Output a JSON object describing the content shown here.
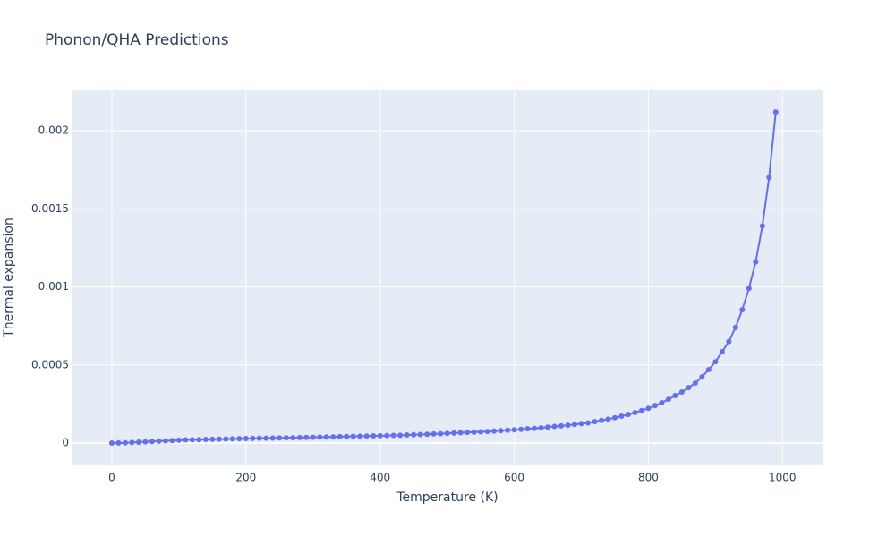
{
  "chart_data": {
    "type": "line",
    "title": "Phonon/QHA Predictions",
    "x_label": "Temperature (K)",
    "y_label": "Thermal expansion",
    "x": [
      0,
      10,
      20,
      30,
      40,
      50,
      60,
      70,
      80,
      90,
      100,
      110,
      120,
      130,
      140,
      150,
      160,
      170,
      180,
      190,
      200,
      210,
      220,
      230,
      240,
      250,
      260,
      270,
      280,
      290,
      300,
      310,
      320,
      330,
      340,
      350,
      360,
      370,
      380,
      390,
      400,
      410,
      420,
      430,
      440,
      450,
      460,
      470,
      480,
      490,
      500,
      510,
      520,
      530,
      540,
      550,
      560,
      570,
      580,
      590,
      600,
      610,
      620,
      630,
      640,
      650,
      660,
      670,
      680,
      690,
      700,
      710,
      720,
      730,
      740,
      750,
      760,
      770,
      780,
      790,
      800,
      810,
      820,
      830,
      840,
      850,
      860,
      870,
      880,
      890,
      900,
      910,
      920,
      930,
      940,
      950,
      960,
      970,
      980,
      990
    ],
    "series": [
      {
        "name": "Thermal expansion",
        "color": "#636efa",
        "values": [
          0,
          1e-06,
          2e-06,
          4e-06,
          6e-06,
          8e-06,
          1e-05,
          1.2e-05,
          1.4e-05,
          1.6e-05,
          1.8e-05,
          2e-05,
          2.1e-05,
          2.2e-05,
          2.3e-05,
          2.4e-05,
          2.5e-05,
          2.6e-05,
          2.7e-05,
          2.8e-05,
          2.9e-05,
          3e-05,
          3.1e-05,
          3.1e-05,
          3.2e-05,
          3.3e-05,
          3.4e-05,
          3.4e-05,
          3.5e-05,
          3.6e-05,
          3.7e-05,
          3.8e-05,
          3.9e-05,
          4e-05,
          4.1e-05,
          4.2e-05,
          4.3e-05,
          4.4e-05,
          4.5e-05,
          4.6e-05,
          4.7e-05,
          4.8e-05,
          4.9e-05,
          5e-05,
          5.2e-05,
          5.3e-05,
          5.5e-05,
          5.6e-05,
          5.8e-05,
          6e-05,
          6.2e-05,
          6.4e-05,
          6.6e-05,
          6.8e-05,
          7e-05,
          7.2e-05,
          7.4e-05,
          7.7e-05,
          7.9e-05,
          8.2e-05,
          8.5e-05,
          8.8e-05,
          9.1e-05,
          9.4e-05,
          9.8e-05,
          0.000102,
          0.000106,
          0.00011,
          0.000114,
          0.000119,
          0.000124,
          0.000129,
          0.000137,
          0.000145,
          0.000153,
          0.000162,
          0.000172,
          0.000183,
          0.000195,
          0.000208,
          0.000222,
          0.00024,
          0.000258,
          0.00028,
          0.000304,
          0.000327,
          0.000355,
          0.000384,
          0.000424,
          0.00047,
          0.00052,
          0.000585,
          0.00065,
          0.00074,
          0.000854,
          0.00099,
          0.00116,
          0.00139,
          0.0017,
          0.00212
        ]
      }
    ],
    "xlim": [
      -60,
      1061
    ],
    "ylim": [
      -0.000143,
      0.002264
    ],
    "xticks": [
      0,
      200,
      400,
      600,
      800,
      1000
    ],
    "yticks": [
      0,
      0.0005,
      0.001,
      0.0015,
      0.002
    ],
    "grid": true
  }
}
